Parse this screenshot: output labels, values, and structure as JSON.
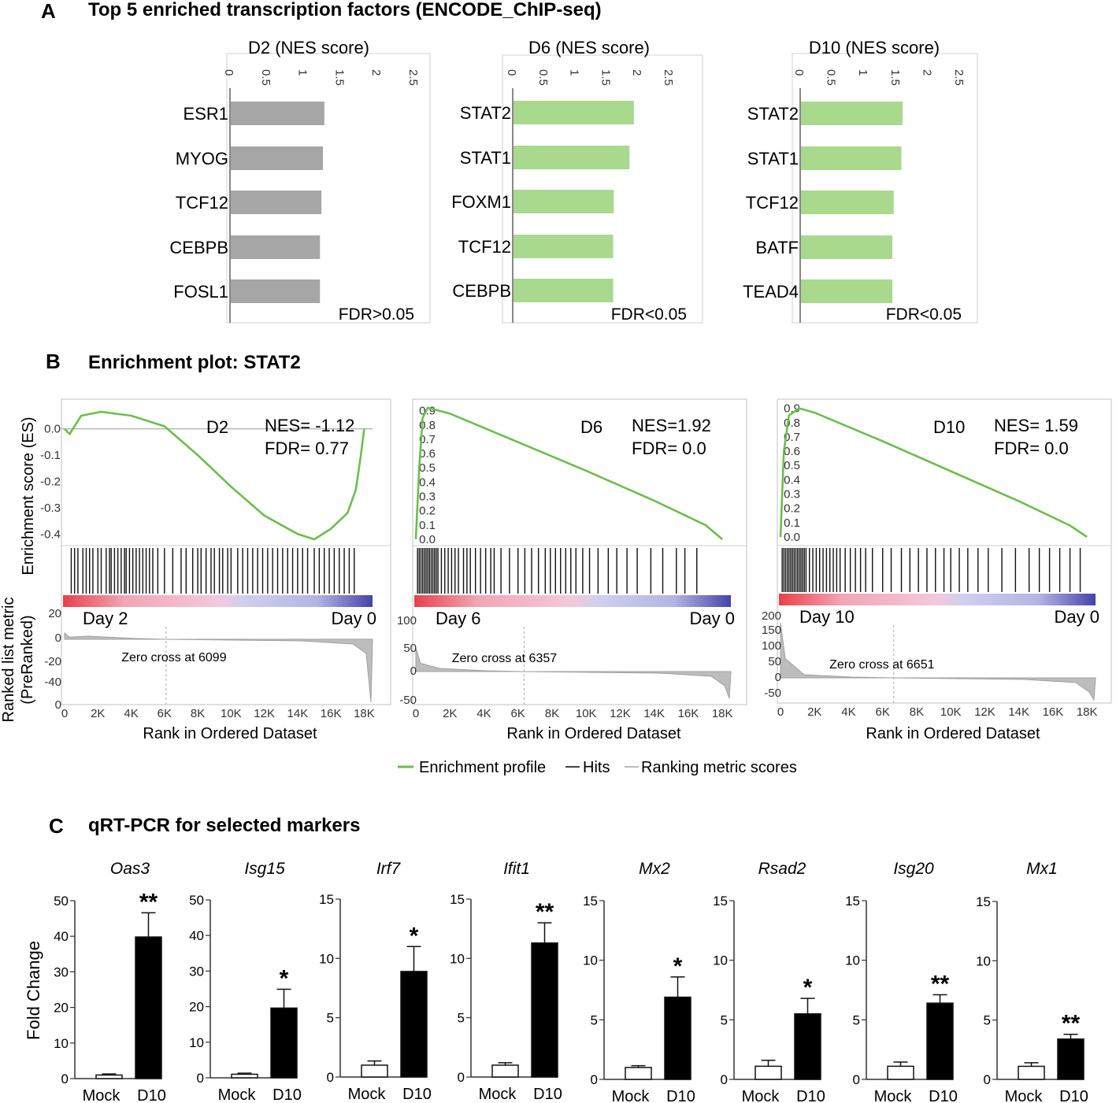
{
  "panel_a": {
    "label": "A",
    "title": "Top 5 enriched transcription factors (ENCODE_ChIP-seq)"
  },
  "panel_b": {
    "label": "B",
    "title": "Enrichment plot: STAT2",
    "y_label_es": "Enrichment  score (ES)",
    "y_label_rank": [
      "Ranked list metric",
      "(PreRanked)"
    ],
    "x_label": "Rank in Ordered Dataset",
    "legend": [
      "Enrichment profile",
      "Hits",
      "Ranking  metric scores"
    ]
  },
  "panel_c": {
    "label": "C",
    "title": "qRT-PCR for selected markers",
    "y_label": "Fold Change"
  },
  "colors": {
    "gray_bar": "#a6a6a6",
    "green_bar": "#a8d98c",
    "es_line": "#6abf4b",
    "hit_line": "#111111",
    "metric": "#bdbdbd"
  },
  "chart_data": [
    {
      "type": "bar",
      "orientation": "horizontal",
      "id": "a1",
      "title": "D2 (NES score)",
      "categories": [
        "ESR1",
        "MYOG",
        "TCF12",
        "CEBPB",
        "FOSL1"
      ],
      "values": [
        1.27,
        1.25,
        1.23,
        1.21,
        1.21
      ],
      "ticks": [
        "0",
        "0.5",
        "1",
        "1.5",
        "2",
        "2.5"
      ],
      "xlim": [
        0,
        2.5
      ],
      "note": "FDR>0.05",
      "color": "#a6a6a6"
    },
    {
      "type": "bar",
      "orientation": "horizontal",
      "id": "a2",
      "title": "D6 (NES score)",
      "categories": [
        "STAT2",
        "STAT1",
        "FOXM1",
        "TCF12",
        "CEBPB"
      ],
      "values": [
        1.92,
        1.85,
        1.6,
        1.59,
        1.59
      ],
      "ticks": [
        "0",
        "0.5",
        "1",
        "1.5",
        "2",
        "2.5"
      ],
      "xlim": [
        0,
        2.5
      ],
      "note": "FDR<0.05",
      "color": "#a8d98c"
    },
    {
      "type": "bar",
      "orientation": "horizontal",
      "id": "a3",
      "title": "D10 (NES score)",
      "categories": [
        "STAT2",
        "STAT1",
        "TCF12",
        "BATF",
        "TEAD4"
      ],
      "values": [
        1.59,
        1.57,
        1.45,
        1.43,
        1.43
      ],
      "ticks": [
        "0",
        "0.5",
        "1",
        "1.5",
        "2",
        "2.5"
      ],
      "xlim": [
        0,
        2.5
      ],
      "note": "FDR<0.05",
      "color": "#a8d98c"
    },
    {
      "type": "line",
      "id": "b1",
      "series_name": "D2",
      "nes_text": "NES= -1.12",
      "fdr_text": "FDR= 0.77",
      "es_ticks": [
        "0.0",
        "-0.1",
        "-0.2",
        "-0.3",
        "-0.4"
      ],
      "es_ylim": [
        -0.42,
        0.08
      ],
      "es_points": [
        [
          0,
          0
        ],
        [
          300,
          -0.02
        ],
        [
          1000,
          0.05
        ],
        [
          2200,
          0.065
        ],
        [
          4000,
          0.05
        ],
        [
          6000,
          0.01
        ],
        [
          8000,
          -0.1
        ],
        [
          10000,
          -0.22
        ],
        [
          12000,
          -0.33
        ],
        [
          14000,
          -0.4
        ],
        [
          15000,
          -0.42
        ],
        [
          16000,
          -0.38
        ],
        [
          17000,
          -0.32
        ],
        [
          17500,
          -0.23
        ],
        [
          17800,
          -0.1
        ],
        [
          18000,
          0
        ]
      ],
      "hits": [
        400,
        600,
        800,
        1100,
        1300,
        1500,
        1700,
        2000,
        2200,
        2500,
        2700,
        2800,
        3000,
        3200,
        3400,
        3600,
        3700,
        3900,
        4100,
        4300,
        4500,
        4700,
        4900,
        5100,
        5300,
        5600,
        6000,
        6500,
        7000,
        7300,
        7700,
        8000,
        8200,
        8500,
        8800,
        9000,
        9300,
        9500,
        9800,
        10000,
        10400,
        10700,
        11000,
        11300,
        11600,
        11900,
        12200,
        12500,
        12800,
        13100,
        13400,
        13700,
        14000,
        14300,
        14600,
        15000,
        15300,
        15600,
        15900,
        16200,
        16500,
        16800,
        17100,
        17400
      ],
      "left_label": "Day 2",
      "right_label": "Day 0",
      "zero_cross": "Zero cross at 6099",
      "zero_cross_x": 6099,
      "metric_ticks": [
        "20",
        "0",
        "-20",
        "-40",
        "0"
      ],
      "x_ticks": [
        "0",
        "2K",
        "4K",
        "6K",
        "8K",
        "10K",
        "12K",
        "14K",
        "16K",
        "18K"
      ],
      "xlim": [
        0,
        18500
      ]
    },
    {
      "type": "line",
      "id": "b2",
      "series_name": "D6",
      "nes_text": "NES=1.92",
      "fdr_text": "FDR= 0.0",
      "es_ticks": [
        "0.9",
        "0.8",
        "0.7",
        "0.6",
        "0.5",
        "0.4",
        "0.3",
        "0.2",
        "0.1",
        "0.0"
      ],
      "es_ylim": [
        0,
        0.92
      ],
      "es_points": [
        [
          0,
          0
        ],
        [
          200,
          0.5
        ],
        [
          400,
          0.85
        ],
        [
          700,
          0.92
        ],
        [
          2000,
          0.88
        ],
        [
          6000,
          0.68
        ],
        [
          10000,
          0.48
        ],
        [
          14000,
          0.27
        ],
        [
          17000,
          0.1
        ],
        [
          18000,
          0
        ]
      ],
      "hits": [
        100,
        200,
        300,
        400,
        500,
        600,
        700,
        800,
        900,
        1000,
        1100,
        1200,
        1300,
        1500,
        1700,
        1900,
        2100,
        2300,
        2500,
        2800,
        3000,
        3200,
        3500,
        3800,
        4100,
        4400,
        4600,
        5000,
        5500,
        6000,
        6400,
        6800,
        7200,
        7600,
        7900,
        8200,
        8500,
        8800,
        9100,
        9400,
        9800,
        10200,
        10700,
        11300,
        11800,
        12400,
        13000,
        13800,
        14500,
        15300,
        15800,
        16500
      ],
      "left_label": "Day 6",
      "right_label": "Day 0",
      "zero_cross": "Zero cross at 6357",
      "zero_cross_x": 6357,
      "metric_ticks": [
        "100",
        "50",
        "0",
        "-50"
      ],
      "x_ticks": [
        "0",
        "2K",
        "4K",
        "6K",
        "8K",
        "10K",
        "12K",
        "14K",
        "16K",
        "18K"
      ],
      "xlim": [
        0,
        18500
      ]
    },
    {
      "type": "line",
      "id": "b3",
      "series_name": "D10",
      "nes_text": "NES= 1.59",
      "fdr_text": "FDR= 0.0",
      "es_ticks": [
        "0.9",
        "0.8",
        "0.7",
        "0.6",
        "0.5",
        "0.4",
        "0.3",
        "0.2",
        "0.1",
        "0.0"
      ],
      "es_ylim": [
        0,
        0.92
      ],
      "es_points": [
        [
          0,
          0
        ],
        [
          200,
          0.6
        ],
        [
          500,
          0.85
        ],
        [
          1100,
          0.9
        ],
        [
          2000,
          0.87
        ],
        [
          6000,
          0.67
        ],
        [
          10000,
          0.46
        ],
        [
          14000,
          0.25
        ],
        [
          17000,
          0.08
        ],
        [
          18000,
          0
        ]
      ],
      "hits": [
        100,
        200,
        300,
        400,
        500,
        600,
        700,
        800,
        900,
        1000,
        1100,
        1200,
        1300,
        1400,
        1500,
        1700,
        1900,
        2100,
        2300,
        2500,
        2700,
        2900,
        3100,
        3300,
        3500,
        3800,
        4100,
        4400,
        4700,
        5000,
        5400,
        6000,
        6500,
        7100,
        7600,
        8100,
        8600,
        9100,
        9600,
        10000,
        10500,
        11000,
        11600,
        12200,
        13000,
        13800,
        14600,
        15200,
        15800,
        16400,
        17000,
        17600
      ],
      "left_label": "Day 10",
      "right_label": "Day 0",
      "zero_cross": "Zero cross at 6651",
      "zero_cross_x": 6651,
      "metric_ticks": [
        "200",
        "150",
        "100",
        "50",
        "0",
        "-50"
      ],
      "x_ticks": [
        "0",
        "2K",
        "4K",
        "6K",
        "8K",
        "10K",
        "12K",
        "14K",
        "16K",
        "18K"
      ],
      "xlim": [
        0,
        18500
      ]
    },
    {
      "type": "bar",
      "id": "c",
      "categories": [
        "Mock",
        "D10"
      ],
      "charts": [
        {
          "gene": "Oas3",
          "ymax": 50,
          "ticks": [
            "0",
            "10",
            "20",
            "30",
            "40",
            "50"
          ],
          "values": [
            1,
            39.8
          ],
          "errors": [
            0.3,
            6.8
          ],
          "sig": "**"
        },
        {
          "gene": "Isg15",
          "ymax": 50,
          "ticks": [
            "0",
            "10",
            "20",
            "30",
            "40",
            "50"
          ],
          "values": [
            1,
            19.6
          ],
          "errors": [
            0.3,
            5.3
          ],
          "sig": "*"
        },
        {
          "gene": "Irf7",
          "ymax": 15,
          "ticks": [
            "0",
            "5",
            "10",
            "15"
          ],
          "values": [
            1,
            8.9
          ],
          "errors": [
            0.35,
            2.1
          ],
          "sig": "*"
        },
        {
          "gene": "Ifit1",
          "ymax": 15,
          "ticks": [
            "0",
            "5",
            "10",
            "15"
          ],
          "values": [
            1,
            11.3
          ],
          "errors": [
            0.2,
            1.7
          ],
          "sig": "**"
        },
        {
          "gene": "Mx2",
          "ymax": 15,
          "ticks": [
            "0",
            "5",
            "10",
            "15"
          ],
          "values": [
            1,
            6.9
          ],
          "errors": [
            0.15,
            1.7
          ],
          "sig": "*"
        },
        {
          "gene": "Rsad2",
          "ymax": 15,
          "ticks": [
            "0",
            "5",
            "10",
            "15"
          ],
          "values": [
            1.1,
            5.5
          ],
          "errors": [
            0.5,
            1.3
          ],
          "sig": "*"
        },
        {
          "gene": "Isg20",
          "ymax": 15,
          "ticks": [
            "0",
            "5",
            "10",
            "15"
          ],
          "values": [
            1.1,
            6.4
          ],
          "errors": [
            0.35,
            0.7
          ],
          "sig": "**"
        },
        {
          "gene": "Mx1",
          "ymax": 15,
          "ticks": [
            "0",
            "5",
            "10",
            "15"
          ],
          "values": [
            1.1,
            3.4
          ],
          "errors": [
            0.3,
            0.4
          ],
          "sig": "**"
        }
      ]
    }
  ]
}
